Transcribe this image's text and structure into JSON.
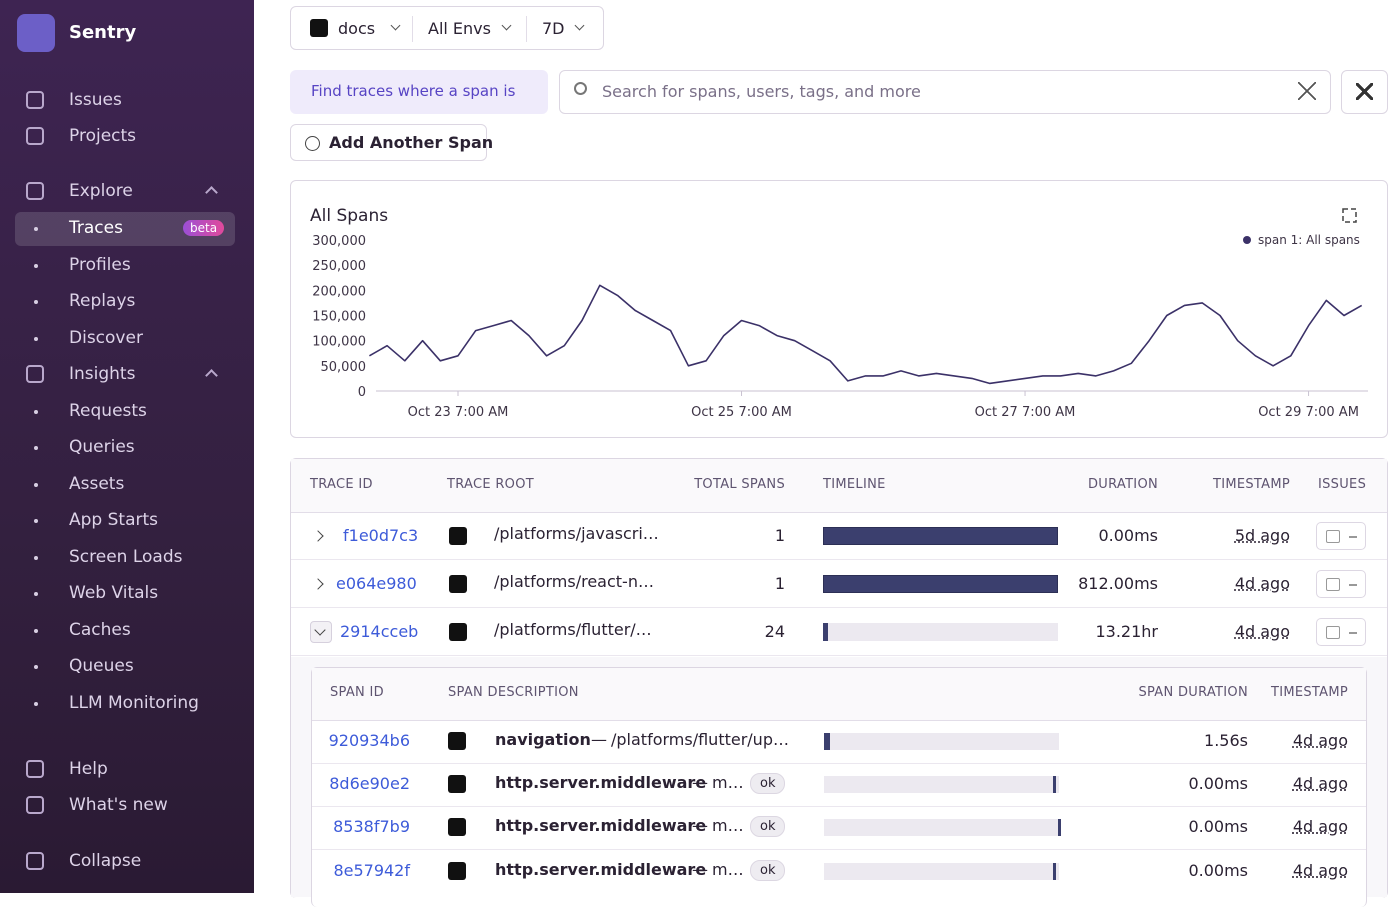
{
  "sidebar": {
    "org": "Sentry",
    "items": [
      {
        "label": "Issues"
      },
      {
        "label": "Projects"
      },
      {
        "label": "Explore"
      },
      {
        "label": "Traces",
        "badge": "beta"
      },
      {
        "label": "Profiles"
      },
      {
        "label": "Replays"
      },
      {
        "label": "Discover"
      },
      {
        "label": "Insights"
      },
      {
        "label": "Requests"
      },
      {
        "label": "Queries"
      },
      {
        "label": "Assets"
      },
      {
        "label": "App Starts"
      },
      {
        "label": "Screen Loads"
      },
      {
        "label": "Web Vitals"
      },
      {
        "label": "Caches"
      },
      {
        "label": "Queues"
      },
      {
        "label": "LLM Monitoring"
      },
      {
        "label": "Help"
      },
      {
        "label": "What's new"
      },
      {
        "label": "Collapse"
      }
    ]
  },
  "filters": {
    "project": "docs",
    "environment": "All Envs",
    "period": "7D"
  },
  "query": {
    "prompt": "Find traces where a span is",
    "placeholder": "Search for spans, users, tags, and more",
    "add_button": "Add Another Span"
  },
  "chart_data": {
    "type": "line",
    "title": "All Spans",
    "categories": [
      null,
      null,
      null,
      null,
      null,
      "Oct 23 7:00 AM",
      null,
      null,
      null,
      null,
      null,
      null,
      null,
      null,
      null,
      null,
      null,
      null,
      null,
      null,
      null,
      "Oct 25 7:00 AM",
      null,
      null,
      null,
      null,
      null,
      null,
      null,
      null,
      null,
      null,
      null,
      null,
      null,
      null,
      null,
      "Oct 27 7:00 AM",
      null,
      null,
      null,
      null,
      null,
      null,
      null,
      null,
      null,
      null,
      null,
      null,
      null,
      null,
      null,
      "Oct 29 7:00 AM",
      null,
      null,
      null
    ],
    "series": [
      {
        "name": "span 1: All spans",
        "color": "#3b3168",
        "values": [
          70000,
          90000,
          60000,
          100000,
          60000,
          70000,
          120000,
          130000,
          140000,
          110000,
          70000,
          90000,
          140000,
          210000,
          190000,
          160000,
          140000,
          120000,
          50000,
          60000,
          110000,
          140000,
          130000,
          110000,
          100000,
          80000,
          60000,
          20000,
          30000,
          30000,
          40000,
          30000,
          35000,
          30000,
          25000,
          15000,
          20000,
          25000,
          30000,
          30000,
          35000,
          30000,
          40000,
          55000,
          100000,
          150000,
          170000,
          175000,
          150000,
          100000,
          70000,
          50000,
          70000,
          130000,
          180000,
          150000,
          170000
        ]
      }
    ],
    "ylim": [
      0,
      300000
    ],
    "yticks": [
      0,
      {
        "value": 50000,
        "label": "50,000"
      },
      {
        "value": 100000,
        "label": "100,000"
      },
      {
        "value": 150000,
        "label": "150,000"
      },
      {
        "value": 200000,
        "label": "200,000"
      },
      {
        "value": 250000,
        "label": "250,000"
      },
      {
        "value": 300000,
        "label": "300,000"
      }
    ],
    "grid": false,
    "legend": "top-right"
  },
  "trace_table": {
    "columns": [
      "TRACE ID",
      "TRACE ROOT",
      "TOTAL SPANS",
      "TIMELINE",
      "DURATION",
      "TIMESTAMP",
      "ISSUES"
    ],
    "rows": [
      {
        "trace_id": "f1e0d7c3",
        "trace_root": "/platforms/javascri…",
        "total_spans": 1,
        "duration": "0.00ms",
        "timestamp": "5d ago"
      },
      {
        "trace_id": "e064e980",
        "trace_root": "/platforms/react-n…",
        "total_spans": 1,
        "duration": "812.00ms",
        "timestamp": "4d ago"
      },
      {
        "trace_id": "2914cceb",
        "trace_root": "/platforms/flutter/…",
        "total_spans": 24,
        "duration": "13.21hr",
        "timestamp": "4d ago"
      }
    ]
  },
  "span_table": {
    "columns": [
      "SPAN ID",
      "SPAN DESCRIPTION",
      "SPAN DURATION",
      "TIMESTAMP"
    ],
    "separator": "—",
    "rows": [
      {
        "span_id": "920934b6",
        "operation": "navigation",
        "description": "/platforms/flutter/up…",
        "duration": "1.56s",
        "timestamp": "4d ago"
      },
      {
        "span_id": "8d6e90e2",
        "operation": "http.server.middleware",
        "description": "m…",
        "status": "ok",
        "duration": "0.00ms",
        "timestamp": "4d ago"
      },
      {
        "span_id": "8538f7b9",
        "operation": "http.server.middleware",
        "description": "m…",
        "status": "ok",
        "duration": "0.00ms",
        "timestamp": "4d ago"
      },
      {
        "span_id": "8e57942f",
        "operation": "http.server.middleware",
        "description": "m…",
        "status": "ok",
        "duration": "0.00ms",
        "timestamp": "4d ago"
      }
    ]
  }
}
